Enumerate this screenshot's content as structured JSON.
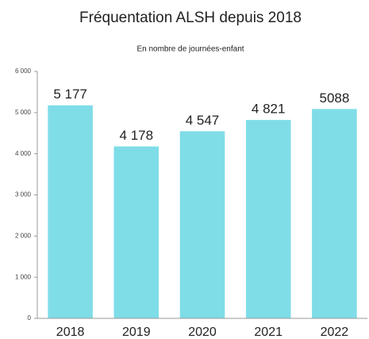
{
  "chart_data": {
    "type": "bar",
    "title": "Fréquentation ALSH depuis 2018",
    "subtitle": "En nombre de journées-enfant",
    "categories": [
      "2018",
      "2019",
      "2020",
      "2021",
      "2022"
    ],
    "values": [
      5177,
      4178,
      4547,
      4821,
      5088
    ],
    "value_labels": [
      "5 177",
      "4 178",
      "4 547",
      "4 821",
      "5088"
    ],
    "color": "#7fdde8",
    "ylim": [
      0,
      6000
    ],
    "yticks": [
      0,
      {
        "value": 1000,
        "label": "1 000"
      },
      {
        "value": 2000,
        "label": "2 000"
      },
      {
        "value": 3000,
        "label": "3 000"
      },
      {
        "value": 4000,
        "label": "4 000"
      },
      {
        "value": 5000,
        "label": "5 000"
      },
      {
        "value": 6000,
        "label": "6 000"
      }
    ],
    "grid": false
  }
}
